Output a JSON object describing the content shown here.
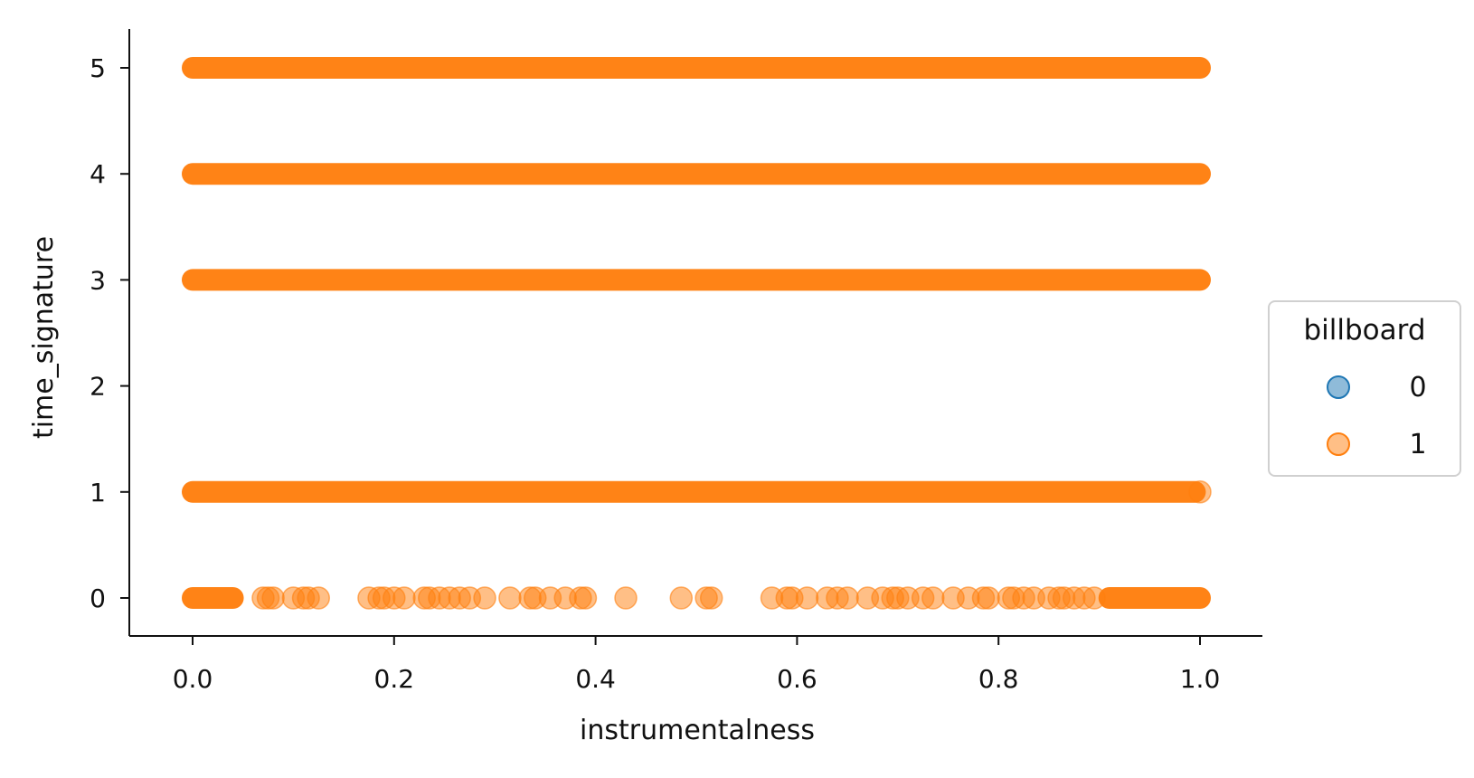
{
  "chart_data": {
    "type": "scatter",
    "xlabel": "instrumentalness",
    "ylabel": "time_signature",
    "xlim": [
      -0.07,
      1.07
    ],
    "ylim": [
      -0.35,
      5.35
    ],
    "xticks": [
      "0.0",
      "0.2",
      "0.4",
      "0.6",
      "0.8",
      "1.0"
    ],
    "yticks": [
      "0",
      "1",
      "2",
      "3",
      "4",
      "5"
    ],
    "grid": false,
    "legend": {
      "title": "billboard",
      "placement": "center-right outside",
      "entries": [
        "0",
        "1"
      ]
    },
    "colors": {
      "0": "#1f77b4",
      "1": "#ff7f0e"
    },
    "series": [
      {
        "name": "0",
        "points": [],
        "dense_bands": []
      },
      {
        "name": "1",
        "points": [
          [
            0.07,
            0
          ],
          [
            0.075,
            0
          ],
          [
            0.08,
            0
          ],
          [
            0.1,
            0
          ],
          [
            0.11,
            0
          ],
          [
            0.115,
            0
          ],
          [
            0.125,
            0
          ],
          [
            0.175,
            0
          ],
          [
            0.185,
            0
          ],
          [
            0.19,
            0
          ],
          [
            0.2,
            0
          ],
          [
            0.21,
            0
          ],
          [
            0.23,
            0
          ],
          [
            0.235,
            0
          ],
          [
            0.245,
            0
          ],
          [
            0.255,
            0
          ],
          [
            0.265,
            0
          ],
          [
            0.275,
            0
          ],
          [
            0.29,
            0
          ],
          [
            0.315,
            0
          ],
          [
            0.335,
            0
          ],
          [
            0.34,
            0
          ],
          [
            0.355,
            0
          ],
          [
            0.37,
            0
          ],
          [
            0.385,
            0
          ],
          [
            0.39,
            0
          ],
          [
            0.43,
            0
          ],
          [
            0.485,
            0
          ],
          [
            0.51,
            0
          ],
          [
            0.515,
            0
          ],
          [
            0.575,
            0
          ],
          [
            0.59,
            0
          ],
          [
            0.595,
            0
          ],
          [
            0.61,
            0
          ],
          [
            0.63,
            0
          ],
          [
            0.64,
            0
          ],
          [
            0.65,
            0
          ],
          [
            0.67,
            0
          ],
          [
            0.685,
            0
          ],
          [
            0.695,
            0
          ],
          [
            0.7,
            0
          ],
          [
            0.71,
            0
          ],
          [
            0.725,
            0
          ],
          [
            0.735,
            0
          ],
          [
            0.755,
            0
          ],
          [
            0.77,
            0
          ],
          [
            0.785,
            0
          ],
          [
            0.79,
            0
          ],
          [
            0.81,
            0
          ],
          [
            0.815,
            0
          ],
          [
            0.825,
            0
          ],
          [
            0.835,
            0
          ],
          [
            0.85,
            0
          ],
          [
            0.86,
            0
          ],
          [
            0.865,
            0
          ],
          [
            0.875,
            0
          ],
          [
            0.885,
            0
          ],
          [
            0.895,
            0
          ],
          [
            1.0,
            1
          ]
        ],
        "dense_bands": [
          {
            "y": 5,
            "from": 0.0,
            "to": 1.0
          },
          {
            "y": 4,
            "from": 0.0,
            "to": 1.0
          },
          {
            "y": 3,
            "from": 0.0,
            "to": 1.0
          },
          {
            "y": 1,
            "from": 0.0,
            "to": 0.995
          },
          {
            "y": 0,
            "from": 0.0,
            "to": 0.04
          },
          {
            "y": 0,
            "from": 0.91,
            "to": 1.0
          }
        ]
      }
    ]
  }
}
